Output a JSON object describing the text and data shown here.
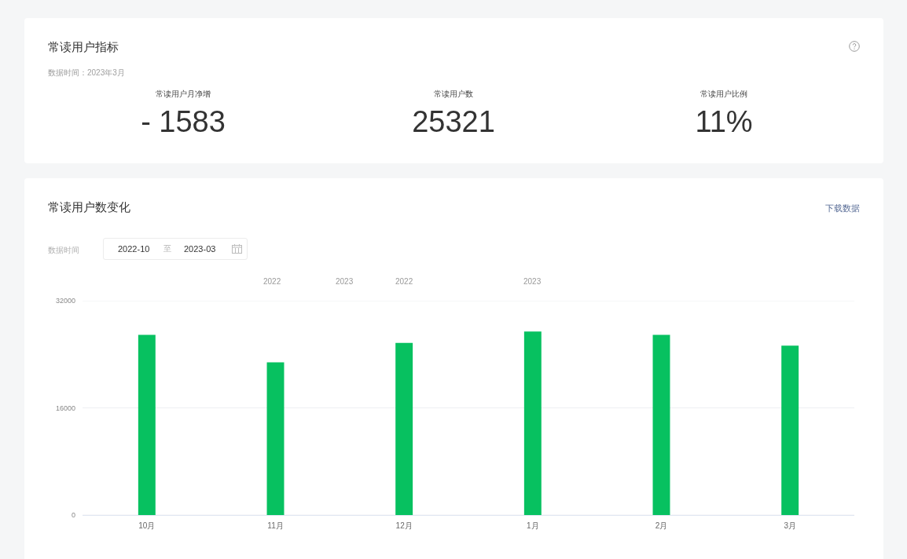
{
  "chart_data": [
    {
      "type": "other",
      "title": "常读用户指标",
      "subtitle": "数据时间：2023年3月",
      "categories": [
        "常读用户月净增",
        "常读用户数",
        "常读用户比例"
      ],
      "annotations": [
        "- 1583",
        "25321",
        "11%"
      ]
    },
    {
      "type": "bar",
      "title": "常读用户数变化",
      "annotations": [
        "下载数据",
        "数据时间",
        "2022-10",
        "至",
        "2023-03",
        "2022",
        "2023",
        "2022",
        "2023"
      ],
      "categories": [
        "10月",
        "11月",
        "12月",
        "1月",
        "2月",
        "3月"
      ],
      "values": [
        26900,
        22800,
        25700,
        27400,
        26900,
        25300
      ],
      "color": "#07c160",
      "ylim": [
        0,
        32000
      ],
      "yticks": [
        0,
        16000,
        32000
      ],
      "grid": "y"
    }
  ]
}
